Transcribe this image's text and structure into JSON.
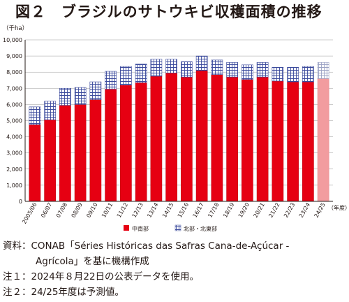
{
  "title": "図２　ブラジルのサトウキビ収穫面積の推移",
  "chart_data": {
    "type": "bar",
    "stacked": true,
    "unit_label": "（千ha）",
    "x_unit_label": "（年度）",
    "ylim": [
      0,
      10000
    ],
    "yticks": [
      0,
      1000,
      2000,
      3000,
      4000,
      5000,
      6000,
      7000,
      8000,
      9000,
      10000
    ],
    "ytick_labels": [
      "0",
      "1,000",
      "2,000",
      "3,000",
      "4,000",
      "5,000",
      "6,000",
      "7,000",
      "8,000",
      "9,000",
      "10,000"
    ],
    "grid": true,
    "legend_position": "bottom",
    "categories": [
      "2005/06",
      "06/07",
      "07/08",
      "08/09",
      "09/10",
      "10/11",
      "11/12",
      "12/13",
      "13/14",
      "14/15",
      "15/16",
      "16/17",
      "17/18",
      "18/19",
      "19/20",
      "20/21",
      "21/22",
      "22/23",
      "23/24",
      "24/25"
    ],
    "series": [
      {
        "name": "中南部",
        "color": "#e60012",
        "values": [
          4750,
          5050,
          5950,
          6000,
          6300,
          6950,
          7200,
          7350,
          7750,
          7950,
          7700,
          8100,
          7850,
          7700,
          7550,
          7700,
          7450,
          7400,
          7400,
          7600
        ]
      },
      {
        "name": "北部・北東部",
        "color": "#2e3a8c",
        "values": [
          1100,
          1150,
          1050,
          1050,
          1100,
          1100,
          1150,
          1150,
          1050,
          850,
          950,
          900,
          900,
          900,
          900,
          900,
          850,
          900,
          950,
          1000
        ]
      }
    ],
    "forecast_index": 19,
    "forecast_colors": {
      "中南部": "#f29c9f",
      "北部・北東部": "#d9dce8"
    }
  },
  "notes": [
    {
      "label": "資料：",
      "text": "CONAB「Séries Históricas das Safras Cana-de-Açúcar -"
    },
    {
      "label": "",
      "text": "Agrícola」を基に機構作成"
    },
    {
      "label": "注１：",
      "text": "2024年８月22日の公表データを使用。"
    },
    {
      "label": "注２：",
      "text": "24/25年度は予測値。"
    }
  ]
}
